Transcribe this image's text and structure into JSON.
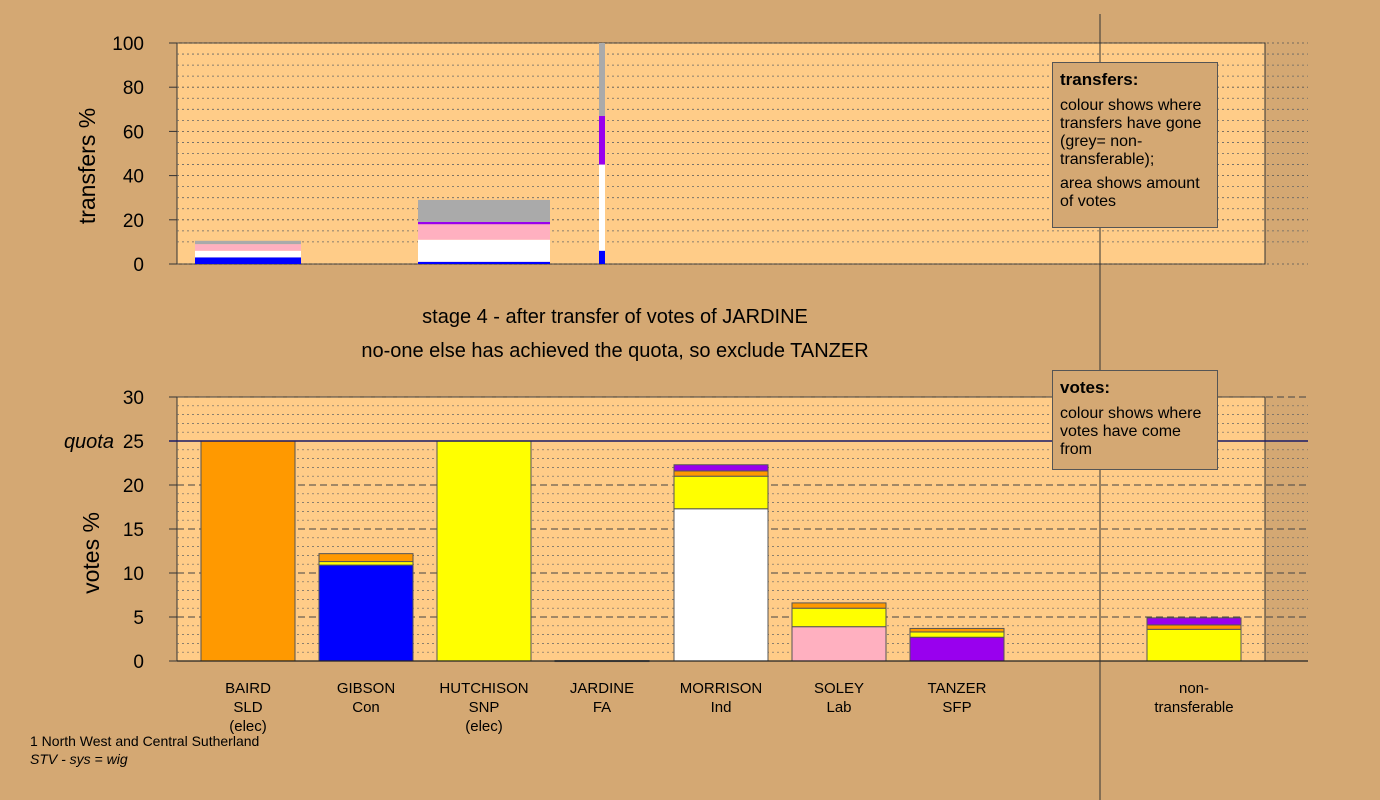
{
  "stage_text": {
    "line1": "stage 4 - after transfer of votes of JARDINE",
    "line2": "no-one else has achieved the quota, so exclude TANZER"
  },
  "legend_transfers": {
    "title": "transfers:",
    "p1": "colour shows where transfers have gone (grey= non-transferable);",
    "p2": "area shows amount of votes"
  },
  "legend_votes": {
    "title": "votes:",
    "p1": "colour shows where votes have come from"
  },
  "footer": {
    "line1": "1 North West and Central Sutherland",
    "line2": "STV - sys = wig"
  },
  "colors": {
    "background": "#d4a873",
    "plot_bg": "#ffcc88",
    "SLD": "#ff9900",
    "Con": "#0000ff",
    "SNP": "#ffff00",
    "FA": "#ffffff",
    "Ind": "#ffffff",
    "Lab": "#ffb0c0",
    "SFP": "#9900ee",
    "nontransferable": "#aaaaaa"
  },
  "chart_data": [
    {
      "type": "bar",
      "stacked": true,
      "ylabel": "transfers %",
      "ylim": [
        0,
        100
      ],
      "yticks": [
        0,
        20,
        40,
        60,
        80,
        100
      ],
      "columns": [
        {
          "segments": [
            {
              "party": "Con",
              "value": 3
            },
            {
              "party": "FA",
              "value": 3
            },
            {
              "party": "Lab",
              "value": 3
            },
            {
              "party": "nontransferable",
              "value": 1.5
            }
          ]
        },
        {
          "segments": []
        },
        {
          "segments": [
            {
              "party": "Con",
              "value": 1
            },
            {
              "party": "FA",
              "value": 10
            },
            {
              "party": "Lab",
              "value": 7
            },
            {
              "party": "SFP",
              "value": 1
            },
            {
              "party": "nontransferable",
              "value": 10
            }
          ]
        },
        {
          "segments": [
            {
              "party": "Con",
              "value": 6
            },
            {
              "party": "FA",
              "value": 39
            },
            {
              "party": "SFP",
              "value": 22
            },
            {
              "party": "nontransferable",
              "value": 33
            }
          ]
        },
        {
          "segments": []
        },
        {
          "segments": []
        },
        {
          "segments": []
        }
      ]
    },
    {
      "type": "bar",
      "stacked": true,
      "ylabel": "votes %",
      "ylim": [
        0,
        30
      ],
      "yticks": [
        0,
        5,
        10,
        15,
        20,
        25,
        30
      ],
      "quota": 25,
      "quota_label": "quota",
      "categories": [
        {
          "name": "BAIRD",
          "party": "SLD",
          "note": "(elec)"
        },
        {
          "name": "GIBSON",
          "party": "Con",
          "note": ""
        },
        {
          "name": "HUTCHISON",
          "party": "SNP",
          "note": "(elec)"
        },
        {
          "name": "JARDINE",
          "party": "FA",
          "note": ""
        },
        {
          "name": "MORRISON",
          "party": "Ind",
          "note": ""
        },
        {
          "name": "SOLEY",
          "party": "Lab",
          "note": ""
        },
        {
          "name": "TANZER",
          "party": "SFP",
          "note": ""
        }
      ],
      "nontransferable_label": [
        "non-",
        "transferable"
      ],
      "columns": [
        {
          "segments": [
            {
              "party": "SLD",
              "value": 25
            }
          ]
        },
        {
          "segments": [
            {
              "party": "Con",
              "value": 10.9
            },
            {
              "party": "SNP",
              "value": 0.4
            },
            {
              "party": "SLD",
              "value": 0.9
            }
          ]
        },
        {
          "segments": [
            {
              "party": "SNP",
              "value": 25
            }
          ]
        },
        {
          "segments": [
            {
              "party": "FA",
              "value": 0.05
            }
          ]
        },
        {
          "segments": [
            {
              "party": "Ind",
              "value": 17.3
            },
            {
              "party": "SNP",
              "value": 3.7
            },
            {
              "party": "SLD",
              "value": 0.6
            },
            {
              "party": "SFP",
              "value": 0.7
            }
          ]
        },
        {
          "segments": [
            {
              "party": "Lab",
              "value": 3.9
            },
            {
              "party": "SNP",
              "value": 2.1
            },
            {
              "party": "SLD",
              "value": 0.6
            }
          ]
        },
        {
          "segments": [
            {
              "party": "SFP",
              "value": 2.7
            },
            {
              "party": "SNP",
              "value": 0.6
            },
            {
              "party": "SLD",
              "value": 0.4
            }
          ]
        }
      ],
      "nontransferable": {
        "segments": [
          {
            "party": "SNP",
            "value": 3.6
          },
          {
            "party": "SLD",
            "value": 0.5
          },
          {
            "party": "SFP",
            "value": 0.8
          }
        ]
      }
    }
  ]
}
